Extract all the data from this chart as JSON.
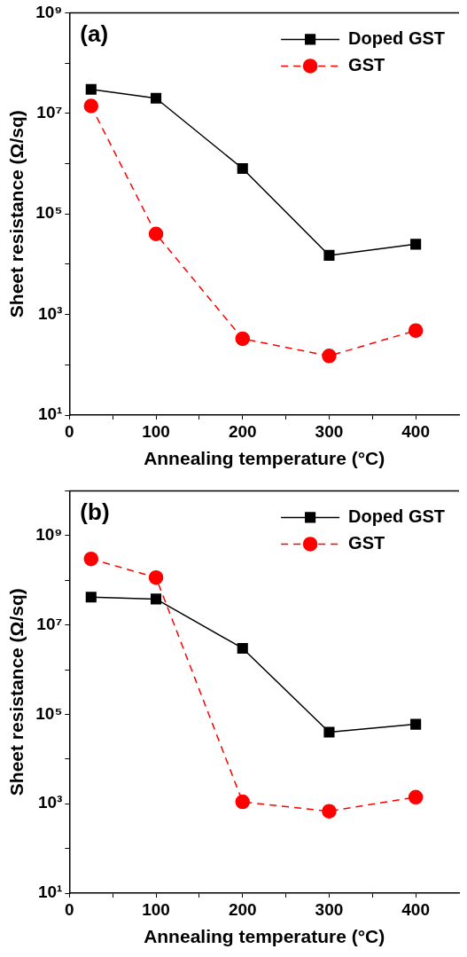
{
  "chart_data": [
    {
      "type": "line",
      "annotations": [
        "(a)"
      ],
      "xlabel": "Annealing temperature (°C)",
      "ylabel": "Sheet resistance (Ω/sq)",
      "x": [
        25,
        100,
        200,
        300,
        400
      ],
      "series": [
        {
          "name": "Doped GST",
          "color": "#000000",
          "marker": "square",
          "line_style": "solid",
          "values": [
            30000000,
            20000000,
            800000,
            15000,
            25000
          ]
        },
        {
          "name": "GST",
          "color": "#ff0000",
          "marker": "circle",
          "line_style": "dashed",
          "values": [
            14000000,
            40000,
            330,
            150,
            480
          ]
        }
      ],
      "log": "y",
      "grid": false,
      "legend": "top right",
      "xlim": [
        0,
        450
      ],
      "xticks": [
        0,
        {
          "value": 50,
          "label": null
        },
        100,
        {
          "value": 150,
          "label": null
        },
        200,
        {
          "value": 250,
          "label": null
        },
        300,
        {
          "value": 350,
          "label": null
        },
        400
      ],
      "ylim": [
        10,
        1000000000
      ],
      "yticks": [
        {
          "value": 10,
          "label": "10¹"
        },
        {
          "value": 100,
          "label": null
        },
        {
          "value": 1000,
          "label": "10³"
        },
        {
          "value": 10000,
          "label": null
        },
        {
          "value": 100000,
          "label": "10⁵"
        },
        {
          "value": 1000000,
          "label": null
        },
        {
          "value": 10000000,
          "label": "10⁷"
        },
        {
          "value": 100000000,
          "label": null
        },
        {
          "value": 1000000000,
          "label": "10⁹"
        }
      ]
    },
    {
      "type": "line",
      "annotations": [
        "(b)"
      ],
      "xlabel": "Annealing temperature (°C)",
      "ylabel": "Sheet resistance (Ω/sq)",
      "x": [
        25,
        100,
        200,
        300,
        400
      ],
      "series": [
        {
          "name": "Doped GST",
          "color": "#000000",
          "marker": "square",
          "line_style": "solid",
          "values": [
            42000000,
            38000000,
            3000000,
            40000,
            60000
          ]
        },
        {
          "name": "GST",
          "color": "#ff0000",
          "marker": "circle",
          "line_style": "dashed",
          "values": [
            300000000,
            115000000,
            1100,
            680,
            1400
          ]
        }
      ],
      "log": "y",
      "grid": false,
      "legend": "top right",
      "xlim": [
        0,
        450
      ],
      "xticks": [
        0,
        {
          "value": 50,
          "label": null
        },
        100,
        {
          "value": 150,
          "label": null
        },
        200,
        {
          "value": 250,
          "label": null
        },
        300,
        {
          "value": 350,
          "label": null
        },
        400
      ],
      "ylim": [
        10,
        10000000000
      ],
      "yticks": [
        {
          "value": 10,
          "label": "10¹"
        },
        {
          "value": 100,
          "label": null
        },
        {
          "value": 1000,
          "label": "10³"
        },
        {
          "value": 10000,
          "label": null
        },
        {
          "value": 100000,
          "label": "10⁵"
        },
        {
          "value": 1000000,
          "label": null
        },
        {
          "value": 10000000,
          "label": "10⁷"
        },
        {
          "value": 100000000,
          "label": null
        },
        {
          "value": 1000000000,
          "label": "10⁹"
        },
        {
          "value": 10000000000,
          "label": null
        }
      ]
    }
  ]
}
